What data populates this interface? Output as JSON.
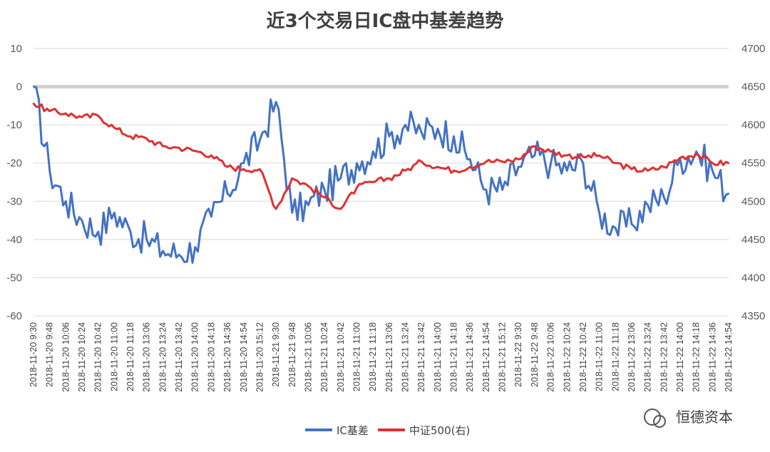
{
  "chart_data": {
    "type": "line",
    "title": "近3个交易日IC盘中基差趋势",
    "y_left": {
      "min": -60,
      "max": 10,
      "ticks": [
        10,
        0,
        -10,
        -20,
        -30,
        -40,
        -50,
        -60
      ]
    },
    "y_right": {
      "min": 4350,
      "max": 4700,
      "ticks": [
        4700,
        4650,
        4600,
        4550,
        4500,
        4450,
        4400,
        4350
      ]
    },
    "grid": true,
    "legend_position": "bottom",
    "categories": [
      "2018-11-20 9:30",
      "2018-11-20 9:48",
      "2018-11-20 10:06",
      "2018-11-20 10:24",
      "2018-11-20 10:42",
      "2018-11-20 11:00",
      "2018-11-20 11:18",
      "2018-11-20 13:06",
      "2018-11-20 13:24",
      "2018-11-20 13:42",
      "2018-11-20 14:00",
      "2018-11-20 14:18",
      "2018-11-20 14:36",
      "2018-11-20 14:54",
      "2018-11-20 15:12",
      "2018-11-21 9:30",
      "2018-11-21 9:48",
      "2018-11-21 10:06",
      "2018-11-21 10:24",
      "2018-11-21 10:42",
      "2018-11-21 11:00",
      "2018-11-21 11:18",
      "2018-11-21 13:06",
      "2018-11-21 13:24",
      "2018-11-21 13:42",
      "2018-11-21 14:00",
      "2018-11-21 14:18",
      "2018-11-21 14:36",
      "2018-11-21 14:54",
      "2018-11-21 15:12",
      "2018-11-22 9:30",
      "2018-11-22 9:48",
      "2018-11-22 10:06",
      "2018-11-22 10:24",
      "2018-11-22 10:42",
      "2018-11-22 11:00",
      "2018-11-22 11:18",
      "2018-11-22 13:06",
      "2018-11-22 13:24",
      "2018-11-22 13:42",
      "2018-11-22 14:00",
      "2018-11-22 14:18",
      "2018-11-22 14:36",
      "2018-11-22 14:54"
    ],
    "series": [
      {
        "name": "IC基差",
        "axis": "left",
        "color": "#4472c4",
        "values": [
          0,
          -22,
          -30,
          -35,
          -38,
          -33,
          -38,
          -40,
          -43,
          -44,
          -42,
          -34,
          -28,
          -20,
          -14,
          -4,
          -33,
          -31,
          -27,
          -24,
          -20,
          -17,
          -13,
          -10,
          -12,
          -11,
          -13,
          -19,
          -27,
          -27,
          -21,
          -18,
          -20,
          -22,
          -20,
          -33,
          -37,
          -36,
          -31,
          -29,
          -19,
          -17,
          -22,
          -28
        ]
      },
      {
        "name": "中证500(右)",
        "axis": "right",
        "color": "#e0302f",
        "values": [
          4628,
          4618,
          4615,
          4610,
          4612,
          4596,
          4585,
          4582,
          4572,
          4570,
          4566,
          4560,
          4545,
          4542,
          4542,
          4490,
          4530,
          4520,
          4505,
          4490,
          4518,
          4525,
          4530,
          4540,
          4552,
          4545,
          4540,
          4545,
          4552,
          4552,
          4555,
          4572,
          4565,
          4560,
          4558,
          4560,
          4550,
          4542,
          4540,
          4545,
          4557,
          4562,
          4550,
          4550
        ]
      }
    ]
  },
  "legend": [
    {
      "label": "IC基差",
      "color": "#4472c4"
    },
    {
      "label": "中证500(右)",
      "color": "#e0302f"
    }
  ],
  "watermark": "恒德资本"
}
